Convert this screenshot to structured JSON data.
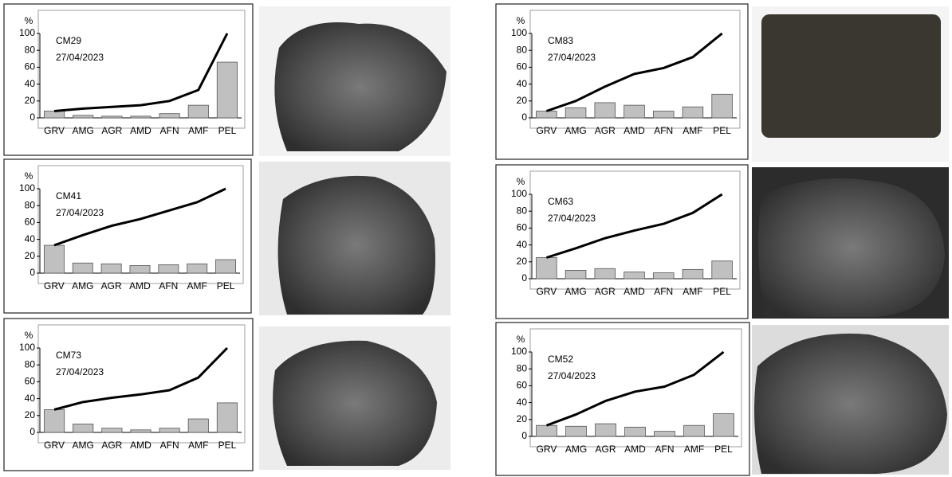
{
  "chart_data": [
    {
      "type": "combo",
      "annotations": [
        "CM29",
        "27/04/2023"
      ],
      "ylabel": "%",
      "categories": [
        "GRV",
        "AMG",
        "AGR",
        "AMD",
        "AFN",
        "AMF",
        "PEL"
      ],
      "ylim": [
        0,
        100
      ],
      "yticks": [
        0,
        20,
        40,
        60,
        80,
        100
      ],
      "series": [
        {
          "kind": "bar",
          "color": "#c0c0c0",
          "values": [
            8,
            3,
            2,
            2,
            5,
            15,
            66
          ]
        },
        {
          "kind": "line",
          "color": "#000000",
          "values": [
            8,
            11,
            13,
            15,
            20,
            33,
            100
          ]
        }
      ]
    },
    {
      "type": "combo",
      "annotations": [
        "CM41",
        "27/04/2023"
      ],
      "ylabel": "%",
      "categories": [
        "GRV",
        "AMG",
        "AGR",
        "AMD",
        "AFN",
        "AMF",
        "PEL"
      ],
      "ylim": [
        0,
        100
      ],
      "yticks": [
        0,
        20,
        40,
        60,
        80,
        100
      ],
      "series": [
        {
          "kind": "bar",
          "color": "#c0c0c0",
          "values": [
            33,
            12,
            11,
            9,
            10,
            11,
            16
          ]
        },
        {
          "kind": "line",
          "color": "#000000",
          "values": [
            33,
            45,
            56,
            64,
            74,
            84,
            100
          ]
        }
      ]
    },
    {
      "type": "combo",
      "annotations": [
        "CM73",
        "27/04/2023"
      ],
      "ylabel": "%",
      "categories": [
        "GRV",
        "AMG",
        "AGR",
        "AMD",
        "AFN",
        "AMF",
        "PEL"
      ],
      "ylim": [
        0,
        100
      ],
      "yticks": [
        0,
        20,
        40,
        60,
        80,
        100
      ],
      "series": [
        {
          "kind": "bar",
          "color": "#c0c0c0",
          "values": [
            27,
            10,
            5,
            3,
            5,
            16,
            35
          ]
        },
        {
          "kind": "line",
          "color": "#000000",
          "values": [
            27,
            36,
            41,
            45,
            50,
            65,
            100
          ]
        }
      ]
    },
    {
      "type": "combo",
      "annotations": [
        "CM83",
        "27/04/2023"
      ],
      "ylabel": "%",
      "categories": [
        "GRV",
        "AMG",
        "AGR",
        "AMD",
        "AFN",
        "AMF",
        "PEL"
      ],
      "ylim": [
        0,
        100
      ],
      "yticks": [
        0,
        20,
        40,
        60,
        80,
        100
      ],
      "series": [
        {
          "kind": "bar",
          "color": "#c0c0c0",
          "values": [
            8,
            12,
            18,
            15,
            8,
            13,
            28
          ]
        },
        {
          "kind": "line",
          "color": "#000000",
          "values": [
            8,
            20,
            37,
            52,
            59,
            72,
            100
          ]
        }
      ]
    },
    {
      "type": "combo",
      "annotations": [
        "CM63",
        "27/04/2023"
      ],
      "ylabel": "%",
      "categories": [
        "GRV",
        "AMG",
        "AGR",
        "AMD",
        "AFN",
        "AMF",
        "PEL"
      ],
      "ylim": [
        0,
        100
      ],
      "yticks": [
        0,
        20,
        40,
        60,
        80,
        100
      ],
      "series": [
        {
          "kind": "bar",
          "color": "#c0c0c0",
          "values": [
            25,
            10,
            12,
            8,
            7,
            11,
            21
          ]
        },
        {
          "kind": "line",
          "color": "#000000",
          "values": [
            25,
            36,
            48,
            57,
            65,
            78,
            100
          ]
        }
      ]
    },
    {
      "type": "combo",
      "annotations": [
        "CM52",
        "27/04/2023"
      ],
      "ylabel": "%",
      "categories": [
        "GRV",
        "AMG",
        "AGR",
        "AMD",
        "AFN",
        "AMF",
        "PEL"
      ],
      "ylim": [
        0,
        100
      ],
      "yticks": [
        0,
        20,
        40,
        60,
        80,
        100
      ],
      "series": [
        {
          "kind": "bar",
          "color": "#c0c0c0",
          "values": [
            13,
            12,
            15,
            11,
            6,
            13,
            27
          ]
        },
        {
          "kind": "line",
          "color": "#000000",
          "values": [
            13,
            26,
            42,
            53,
            59,
            73,
            100
          ]
        }
      ]
    }
  ]
}
